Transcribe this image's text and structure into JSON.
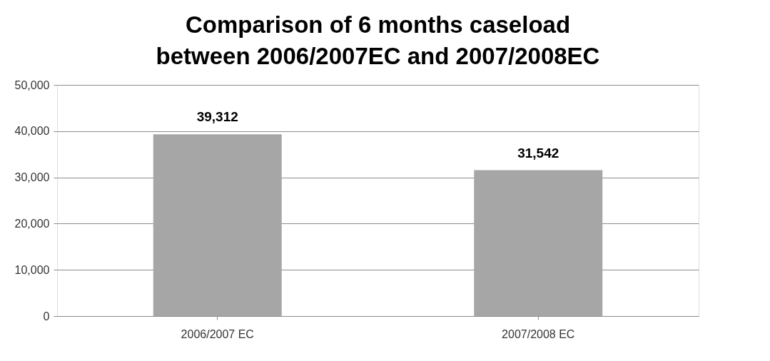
{
  "chart_data": {
    "type": "bar",
    "title": [
      "Comparison of 6 months caseload",
      "between 2006/2007EC and 2007/2008EC"
    ],
    "categories": [
      "2006/2007 EC",
      "2007/2008 EC"
    ],
    "values": [
      39312,
      31542
    ],
    "value_labels": [
      "39,312",
      "31,542"
    ],
    "color": "#a6a6a6",
    "ylim": [
      0,
      50000
    ],
    "yticks": [
      0,
      {
        "value": 10000,
        "label": "10,000"
      },
      {
        "value": 20000,
        "label": "20,000"
      },
      {
        "value": 30000,
        "label": "30,000"
      },
      {
        "value": 40000,
        "label": "40,000"
      },
      {
        "value": 50000,
        "label": "50,000"
      }
    ],
    "grid": "y"
  }
}
